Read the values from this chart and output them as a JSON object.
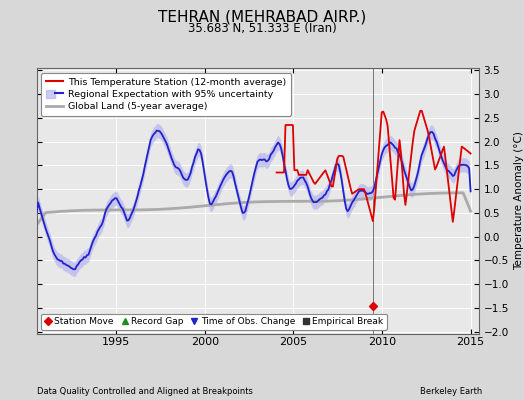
{
  "title": "TEHRAN (MEHRABAD AIRP.)",
  "subtitle": "35.683 N, 51.333 E (Iran)",
  "footer_left": "Data Quality Controlled and Aligned at Breakpoints",
  "footer_right": "Berkeley Earth",
  "ylabel": "Temperature Anomaly (°C)",
  "xlim": [
    1990.5,
    2015.5
  ],
  "ylim": [
    -2.05,
    3.55
  ],
  "yticks": [
    -2,
    -1.5,
    -1,
    -0.5,
    0,
    0.5,
    1,
    1.5,
    2,
    2.5,
    3,
    3.5
  ],
  "xticks": [
    1995,
    2000,
    2005,
    2010,
    2015
  ],
  "bg_color": "#d8d8d8",
  "plot_bg_color": "#e8e8e8",
  "station_color": "#dd0000",
  "regional_color": "#2222cc",
  "uncertainty_color": "#b0b0ee",
  "global_color": "#aaaaaa",
  "legend_items": [
    {
      "label": "This Temperature Station (12-month average)",
      "color": "#dd0000",
      "lw": 1.5
    },
    {
      "label": "Regional Expectation with 95% uncertainty",
      "color": "#2222cc",
      "lw": 1.5
    },
    {
      "label": "Global Land (5-year average)",
      "color": "#aaaaaa",
      "lw": 2.0
    }
  ],
  "marker_legend": [
    {
      "label": "Station Move",
      "color": "#dd0000",
      "marker": "D"
    },
    {
      "label": "Record Gap",
      "color": "#228B22",
      "marker": "^"
    },
    {
      "label": "Time of Obs. Change",
      "color": "#2222cc",
      "marker": "v"
    },
    {
      "label": "Empirical Break",
      "color": "#333333",
      "marker": "s"
    }
  ],
  "station_move": {
    "year": 2009.5,
    "value": -1.47
  }
}
